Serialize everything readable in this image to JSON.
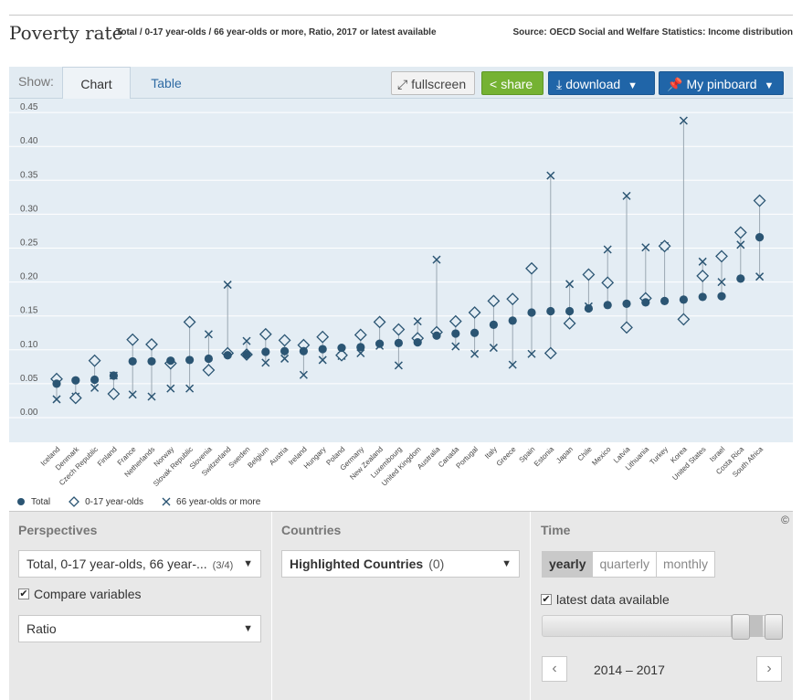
{
  "header": {
    "title": "Poverty rate",
    "subtitle": "Total / 0-17 year-olds / 66 year-olds or more, Ratio, 2017 or latest available",
    "source": "Source: OECD Social and Welfare Statistics: Income distribution"
  },
  "toolbar": {
    "show_label": "Show:",
    "tabs": [
      "Chart",
      "Table"
    ],
    "fullscreen": "fullscreen",
    "share": "share",
    "download": "download",
    "pinboard": "My pinboard"
  },
  "colors": {
    "total": "#2b5573",
    "marker": "#2b5573",
    "grid": "#ffffff",
    "bg": "#e4edf4"
  },
  "chart_data": {
    "type": "scatter",
    "categories": [
      "Iceland",
      "Denmark",
      "Czech Republic",
      "Finland",
      "France",
      "Netherlands",
      "Norway",
      "Slovak Republic",
      "Slovenia",
      "Switzerland",
      "Sweden",
      "Belgium",
      "Austria",
      "Ireland",
      "Hungary",
      "Poland",
      "Germany",
      "New Zealand",
      "Luxembourg",
      "United Kingdom",
      "Australia",
      "Canada",
      "Portugal",
      "Italy",
      "Greece",
      "Spain",
      "Estonia",
      "Japan",
      "Chile",
      "Mexico",
      "Latvia",
      "Lithuania",
      "Turkey",
      "Korea",
      "United States",
      "Israel",
      "Costa Rica",
      "South Africa"
    ],
    "series": [
      {
        "name": "Total",
        "values": [
          0.05,
          0.055,
          0.056,
          0.062,
          0.083,
          0.083,
          0.084,
          0.085,
          0.087,
          0.092,
          0.093,
          0.097,
          0.098,
          0.098,
          0.101,
          0.103,
          0.104,
          0.109,
          0.11,
          0.111,
          0.121,
          0.124,
          0.125,
          0.137,
          0.143,
          0.155,
          0.157,
          0.157,
          0.161,
          0.166,
          0.168,
          0.17,
          0.172,
          0.174,
          0.178,
          0.179,
          0.205,
          0.266
        ]
      },
      {
        "name": "0-17 year-olds",
        "values": [
          0.057,
          0.029,
          0.084,
          0.035,
          0.115,
          0.108,
          0.08,
          0.141,
          0.07,
          0.095,
          0.093,
          0.123,
          0.114,
          0.107,
          0.119,
          0.092,
          0.122,
          0.141,
          0.13,
          0.117,
          0.126,
          0.142,
          0.155,
          0.172,
          0.175,
          0.22,
          0.095,
          0.139,
          0.211,
          0.199,
          0.133,
          0.176,
          0.253,
          0.145,
          0.209,
          0.238,
          0.273,
          0.32
        ]
      },
      {
        "name": "66 year-olds or more",
        "values": [
          0.027,
          0.031,
          0.044,
          0.062,
          0.034,
          0.031,
          0.043,
          0.043,
          0.123,
          0.196,
          0.113,
          0.081,
          0.087,
          0.063,
          0.085,
          0.091,
          0.095,
          0.106,
          0.077,
          0.142,
          0.233,
          0.105,
          0.094,
          0.103,
          0.078,
          0.094,
          0.357,
          0.197,
          0.164,
          0.248,
          0.327,
          0.251,
          0.253,
          0.438,
          0.23,
          0.2,
          0.255,
          0.208
        ]
      }
    ],
    "ylim": [
      -0.01,
      0.45
    ],
    "yticks": [
      "0.45",
      "0.40",
      "0.35",
      "0.30",
      "0.25",
      "0.20",
      "0.15",
      "0.10",
      "0.05",
      "0.00"
    ],
    "legend_position": "bottom-left",
    "grid": true
  },
  "panel": {
    "perspectives_label": "Perspectives",
    "perspectives_value": "Total, 0-17 year-olds, 66 year-...",
    "perspectives_count": "(3/4)",
    "compare_label": "Compare variables",
    "ratio_value": "Ratio",
    "countries_label": "Countries",
    "countries_value": "Highlighted Countries",
    "countries_count": "(0)",
    "time_label": "Time",
    "freq": [
      "yearly",
      "quarterly",
      "monthly"
    ],
    "latest_label": "latest data available",
    "range": "2014 – 2017",
    "copyright": "©"
  }
}
